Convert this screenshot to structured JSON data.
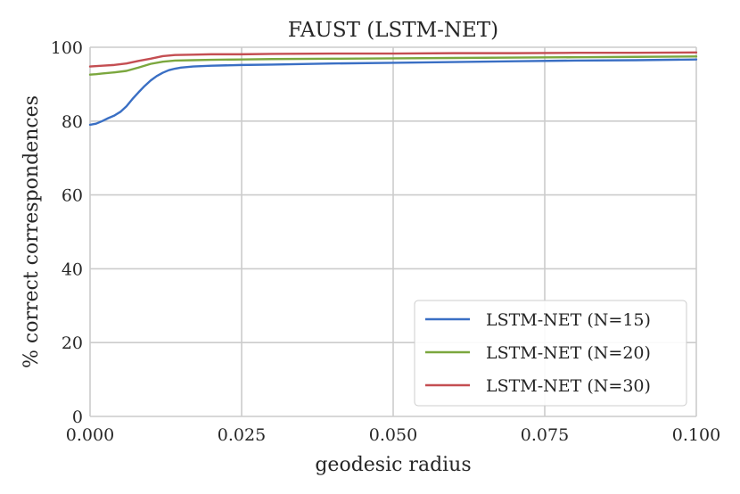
{
  "chart_data": {
    "type": "line",
    "title": "FAUST (LSTM-NET)",
    "xlabel": "geodesic radius",
    "ylabel": "% correct correspondences",
    "xlim": [
      0,
      0.1
    ],
    "ylim": [
      0,
      100
    ],
    "xticks": [
      "0.000",
      "0.025",
      "0.050",
      "0.075",
      "0.100"
    ],
    "yticks": [
      "0",
      "20",
      "40",
      "60",
      "80",
      "100"
    ],
    "grid": true,
    "legend_position": "lower-right",
    "series": [
      {
        "name": "LSTM-NET (N=15)",
        "color": "#3a6fc4",
        "x": [
          0,
          0.001,
          0.002,
          0.003,
          0.004,
          0.005,
          0.006,
          0.007,
          0.008,
          0.009,
          0.01,
          0.011,
          0.012,
          0.013,
          0.014,
          0.015,
          0.017,
          0.02,
          0.025,
          0.03,
          0.04,
          0.05,
          0.06,
          0.07,
          0.08,
          0.09,
          0.1
        ],
        "y": [
          79.0,
          79.3,
          80.0,
          80.8,
          81.5,
          82.5,
          84.0,
          86.0,
          87.8,
          89.5,
          91.0,
          92.2,
          93.1,
          93.8,
          94.2,
          94.5,
          94.8,
          95.0,
          95.2,
          95.3,
          95.6,
          95.8,
          96.0,
          96.2,
          96.4,
          96.5,
          96.7
        ]
      },
      {
        "name": "LSTM-NET (N=20)",
        "color": "#7ba73e",
        "x": [
          0,
          0.001,
          0.002,
          0.004,
          0.006,
          0.008,
          0.01,
          0.012,
          0.014,
          0.017,
          0.02,
          0.025,
          0.03,
          0.04,
          0.05,
          0.06,
          0.07,
          0.08,
          0.09,
          0.1
        ],
        "y": [
          92.6,
          92.7,
          92.9,
          93.2,
          93.6,
          94.5,
          95.5,
          96.1,
          96.4,
          96.5,
          96.6,
          96.7,
          96.8,
          96.9,
          97.0,
          97.1,
          97.2,
          97.3,
          97.4,
          97.5
        ]
      },
      {
        "name": "LSTM-NET (N=30)",
        "color": "#c44e52",
        "x": [
          0,
          0.002,
          0.004,
          0.006,
          0.008,
          0.01,
          0.012,
          0.014,
          0.017,
          0.02,
          0.025,
          0.03,
          0.04,
          0.05,
          0.06,
          0.07,
          0.08,
          0.09,
          0.1
        ],
        "y": [
          94.8,
          95.0,
          95.2,
          95.6,
          96.3,
          96.9,
          97.6,
          97.9,
          98.0,
          98.1,
          98.1,
          98.2,
          98.3,
          98.3,
          98.4,
          98.4,
          98.5,
          98.5,
          98.6
        ]
      }
    ]
  }
}
